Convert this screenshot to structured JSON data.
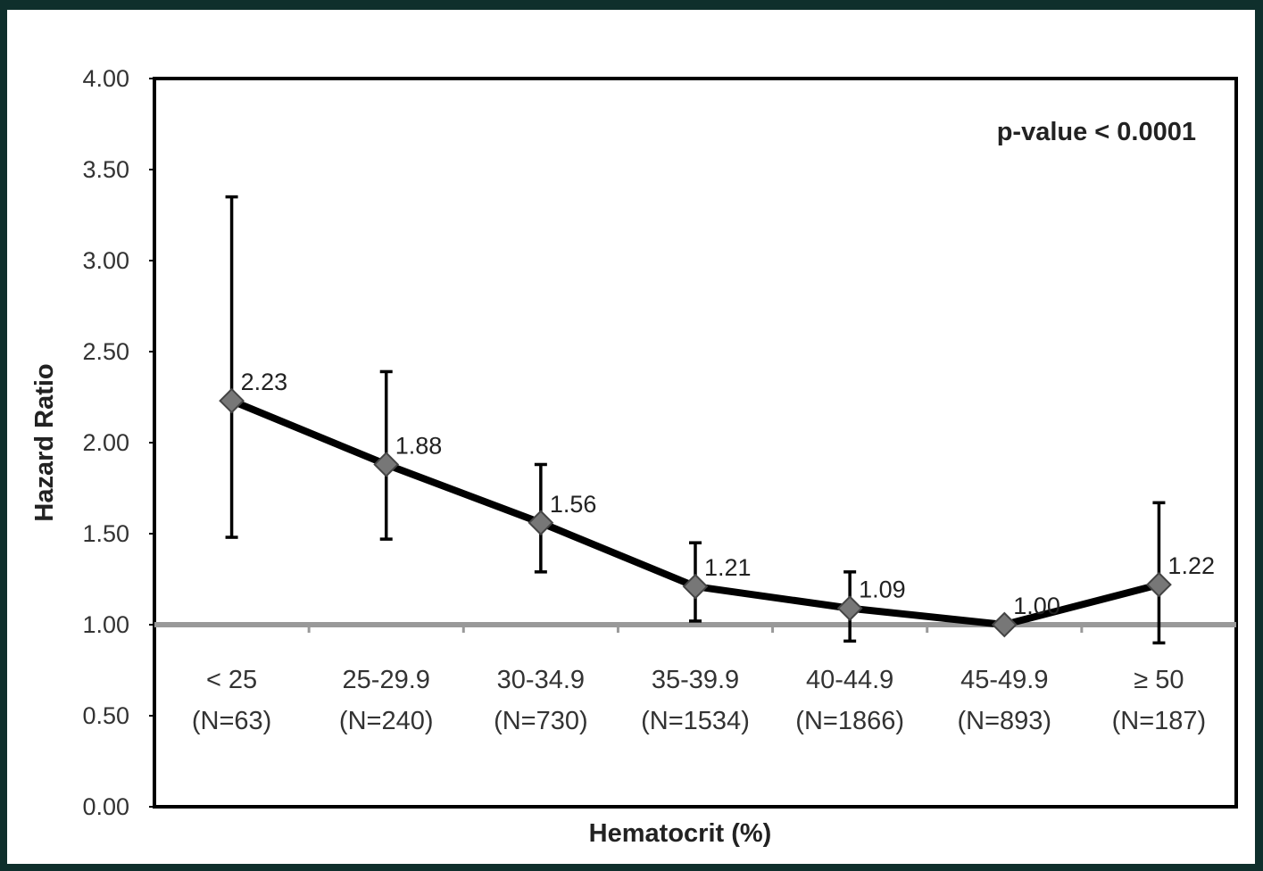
{
  "chart_data": {
    "type": "line",
    "xlabel": "Hematocrit (%)",
    "ylabel": "Hazard Ratio",
    "annotation": "p-value < 0.0001",
    "ylim": [
      0,
      4
    ],
    "yticks": [
      "0.00",
      "0.50",
      "1.00",
      "1.50",
      "2.00",
      "2.50",
      "3.00",
      "3.50",
      "4.00"
    ],
    "reference_line": 1.0,
    "categories": [
      {
        "range": "< 25",
        "n": "(N=63)"
      },
      {
        "range": "25-29.9",
        "n": "(N=240)"
      },
      {
        "range": "30-34.9",
        "n": "(N=730)"
      },
      {
        "range": "35-39.9",
        "n": "(N=1534)"
      },
      {
        "range": "40-44.9",
        "n": "(N=1866)"
      },
      {
        "range": "45-49.9",
        "n": "(N=893)"
      },
      {
        "range": "≥ 50",
        "n": "(N=187)"
      }
    ],
    "values": [
      2.23,
      1.88,
      1.56,
      1.21,
      1.09,
      1.0,
      1.22
    ],
    "labels": [
      "2.23",
      "1.88",
      "1.56",
      "1.21",
      "1.09",
      "1.00",
      "1.22"
    ],
    "ci_lower": [
      1.48,
      1.47,
      1.29,
      1.02,
      0.91,
      null,
      0.9
    ],
    "ci_upper": [
      3.35,
      2.39,
      1.88,
      1.45,
      1.29,
      null,
      1.67
    ],
    "grid": false,
    "legend": "none",
    "colors": {
      "line": "#000000",
      "marker": "#777777",
      "reference": "#999999",
      "background": "#0f2f2c"
    }
  }
}
